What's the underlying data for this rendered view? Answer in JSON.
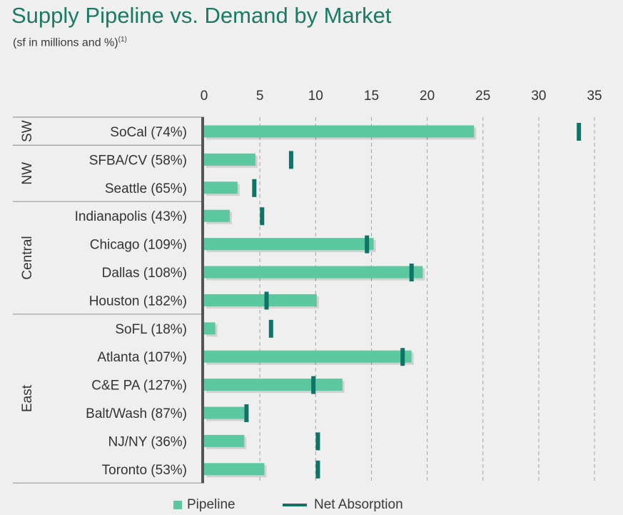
{
  "title": "Supply Pipeline vs. Demand by Market",
  "subtitle": "(sf in millions and %)",
  "subtitle_footnote": "(1)",
  "colors": {
    "pipeline": "#5cc8a0",
    "net_absorption": "#0e7466",
    "title": "#1b7a64",
    "grid": "#a0a0a0",
    "axis": "#555555"
  },
  "chart_data": {
    "type": "bar",
    "orientation": "horizontal",
    "title": "Supply Pipeline vs. Demand by Market",
    "xlim": [
      0,
      35
    ],
    "x_ticks": [
      0,
      5,
      10,
      15,
      20,
      25,
      30,
      35
    ],
    "grid": "vertical dashed",
    "legend_position": "bottom",
    "groups": [
      {
        "name": "SW",
        "categories": [
          "SoCal (74%)"
        ]
      },
      {
        "name": "NW",
        "categories": [
          "SFBA/CV (58%)",
          "Seattle (65%)"
        ]
      },
      {
        "name": "Central",
        "categories": [
          "Indianapolis (43%)",
          "Chicago (109%)",
          "Dallas (108%)",
          "Houston (182%)"
        ]
      },
      {
        "name": "East",
        "categories": [
          "SoFL (18%)",
          "Atlanta (107%)",
          "C&E PA (127%)",
          "Balt/Wash (87%)",
          "NJ/NY (36%)",
          "Toronto (53%)"
        ]
      }
    ],
    "categories": [
      "SoCal (74%)",
      "SFBA/CV (58%)",
      "Seattle (65%)",
      "Indianapolis (43%)",
      "Chicago (109%)",
      "Dallas (108%)",
      "Houston (182%)",
      "SoFL (18%)",
      "Atlanta (107%)",
      "C&E PA (127%)",
      "Balt/Wash (87%)",
      "NJ/NY (36%)",
      "Toronto (53%)"
    ],
    "series": [
      {
        "name": "Pipeline",
        "kind": "bar",
        "values": [
          24.2,
          4.6,
          3.0,
          2.3,
          15.2,
          19.6,
          10.1,
          1.0,
          18.6,
          12.4,
          3.6,
          3.6,
          5.4
        ]
      },
      {
        "name": "Net Absorption",
        "kind": "marker",
        "values": [
          33.6,
          7.8,
          4.5,
          5.2,
          14.6,
          18.6,
          5.6,
          6.0,
          17.8,
          9.8,
          3.8,
          10.2,
          10.2
        ]
      }
    ]
  }
}
